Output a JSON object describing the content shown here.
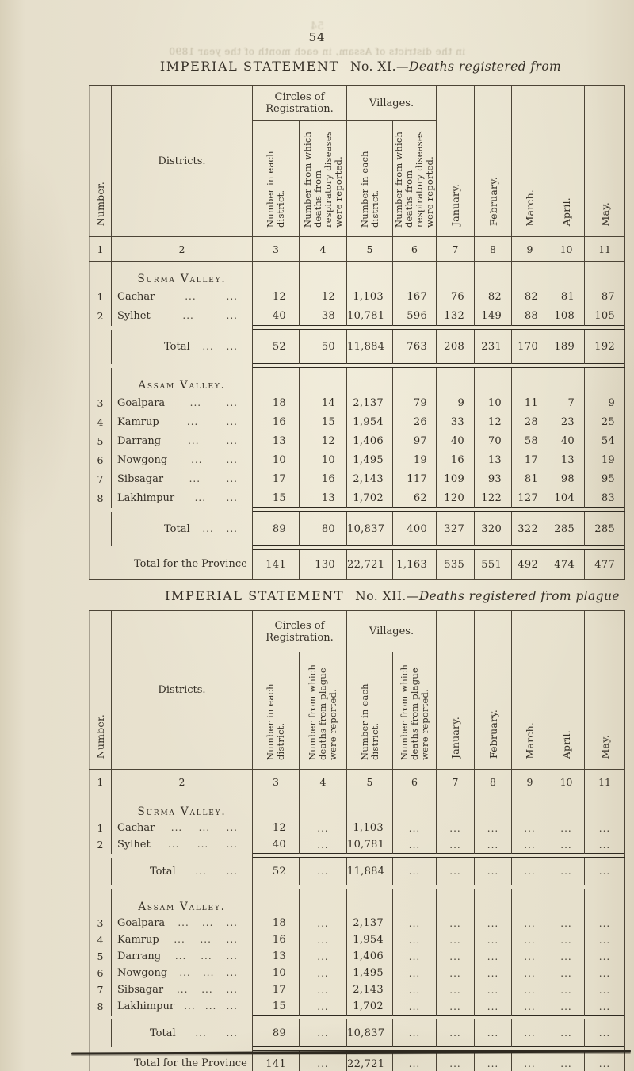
{
  "page": {
    "number": "54",
    "ghost_number": "54",
    "bleedthrough_text": "in the districts of Assam, in each month of the year 1890"
  },
  "tables": [
    {
      "title": {
        "main": "IMPERIAL STATEMENT",
        "no": "No. XI.—",
        "italic": "Deaths registered from"
      },
      "header": {
        "number": "Number.",
        "districts": "Districts.",
        "circles": "Circles of Registration.",
        "villages": "Villages.",
        "sub_count": "Number in each district.",
        "sub_cause": "Number from which deaths from respiratory diseases were reported."
      },
      "months": [
        "January.",
        "February.",
        "March.",
        "April.",
        "May."
      ],
      "col_numbers": [
        "1",
        "2",
        "3",
        "4",
        "5",
        "6",
        "7",
        "8",
        "9",
        "10",
        "11"
      ],
      "leader": "...",
      "leader_groups": 2,
      "body": [
        {
          "t": "section",
          "label": "Surma Valley."
        },
        {
          "t": "row",
          "n": "1",
          "name": "Cachar",
          "v": [
            "12",
            "12",
            "1,103",
            "167",
            "76",
            "82",
            "82",
            "81",
            "87"
          ]
        },
        {
          "t": "row",
          "n": "2",
          "name": "Sylhet",
          "v": [
            "40",
            "38",
            "10,781",
            "596",
            "132",
            "149",
            "88",
            "108",
            "105"
          ]
        },
        {
          "t": "rule"
        },
        {
          "t": "total",
          "label": "Total",
          "v": [
            "52",
            "50",
            "11,884",
            "763",
            "208",
            "231",
            "170",
            "189",
            "192"
          ]
        },
        {
          "t": "rule"
        },
        {
          "t": "section",
          "label": "Assam Valley."
        },
        {
          "t": "row",
          "n": "3",
          "name": "Goalpara",
          "v": [
            "18",
            "14",
            "2,137",
            "79",
            "9",
            "10",
            "11",
            "7",
            "9"
          ]
        },
        {
          "t": "row",
          "n": "4",
          "name": "Kamrup",
          "v": [
            "16",
            "15",
            "1,954",
            "26",
            "33",
            "12",
            "28",
            "23",
            "25"
          ]
        },
        {
          "t": "row",
          "n": "5",
          "name": "Darrang",
          "v": [
            "13",
            "12",
            "1,406",
            "97",
            "40",
            "70",
            "58",
            "40",
            "54"
          ]
        },
        {
          "t": "row",
          "n": "6",
          "name": "Nowgong",
          "v": [
            "10",
            "10",
            "1,495",
            "19",
            "16",
            "13",
            "17",
            "13",
            "19"
          ]
        },
        {
          "t": "row",
          "n": "7",
          "name": "Sibsagar",
          "v": [
            "17",
            "16",
            "2,143",
            "117",
            "109",
            "93",
            "81",
            "98",
            "95"
          ]
        },
        {
          "t": "row",
          "n": "8",
          "name": "Lakhimpur",
          "v": [
            "15",
            "13",
            "1,702",
            "62",
            "120",
            "122",
            "127",
            "104",
            "83"
          ]
        },
        {
          "t": "rule"
        },
        {
          "t": "total",
          "label": "Total",
          "v": [
            "89",
            "80",
            "10,837",
            "400",
            "327",
            "320",
            "322",
            "285",
            "285"
          ]
        },
        {
          "t": "rule"
        },
        {
          "t": "province",
          "label": "Total for the Province",
          "v": [
            "141",
            "130",
            "22,721",
            "1,163",
            "535",
            "551",
            "492",
            "474",
            "477"
          ]
        }
      ]
    },
    {
      "title": {
        "main": "IMPERIAL STATEMENT",
        "no": "No. XII.—",
        "italic": "Deaths registered from plague"
      },
      "header": {
        "number": "Number.",
        "districts": "Districts.",
        "circles": "Circles of Registration.",
        "villages": "Villages.",
        "sub_count": "Number in each district.",
        "sub_cause": "Number from which deaths from plague were reported."
      },
      "months": [
        "January.",
        "February.",
        "March.",
        "April.",
        "May."
      ],
      "col_numbers": [
        "1",
        "2",
        "3",
        "4",
        "5",
        "6",
        "7",
        "8",
        "9",
        "10",
        "11"
      ],
      "leader": "...",
      "leader_groups": 3,
      "body": [
        {
          "t": "section",
          "label": "Surma Valley."
        },
        {
          "t": "row",
          "n": "1",
          "name": "Cachar",
          "v": [
            "12",
            "...",
            "1,103",
            "...",
            "...",
            "...",
            "...",
            "...",
            "..."
          ]
        },
        {
          "t": "row",
          "n": "2",
          "name": "Sylhet",
          "v": [
            "40",
            "...",
            "10,781",
            "...",
            "...",
            "...",
            "...",
            "...",
            "..."
          ]
        },
        {
          "t": "rule"
        },
        {
          "t": "total",
          "label": "Total",
          "v": [
            "52",
            "...",
            "11,884",
            "...",
            "...",
            "...",
            "...",
            "...",
            "..."
          ]
        },
        {
          "t": "rule"
        },
        {
          "t": "section",
          "label": "Assam Valley."
        },
        {
          "t": "row",
          "n": "3",
          "name": "Goalpara",
          "v": [
            "18",
            "...",
            "2,137",
            "...",
            "...",
            "...",
            "...",
            "...",
            "..."
          ]
        },
        {
          "t": "row",
          "n": "4",
          "name": "Kamrup",
          "v": [
            "16",
            "...",
            "1,954",
            "...",
            "...",
            "...",
            "...",
            "...",
            "..."
          ]
        },
        {
          "t": "row",
          "n": "5",
          "name": "Darrang",
          "v": [
            "13",
            "...",
            "1,406",
            "...",
            "...",
            "...",
            "...",
            "...",
            "..."
          ]
        },
        {
          "t": "row",
          "n": "6",
          "name": "Nowgong",
          "v": [
            "10",
            "...",
            "1,495",
            "...",
            "...",
            "...",
            "...",
            "...",
            "..."
          ]
        },
        {
          "t": "row",
          "n": "7",
          "name": "Sibsagar",
          "v": [
            "17",
            "...",
            "2,143",
            "...",
            "...",
            "...",
            "...",
            "...",
            "..."
          ]
        },
        {
          "t": "row",
          "n": "8",
          "name": "Lakhimpur",
          "v": [
            "15",
            "...",
            "1,702",
            "...",
            "...",
            "...",
            "...",
            "...",
            "..."
          ]
        },
        {
          "t": "rule"
        },
        {
          "t": "total",
          "label": "Total",
          "v": [
            "89",
            "...",
            "10,837",
            "...",
            "...",
            "...",
            "...",
            "...",
            "..."
          ]
        },
        {
          "t": "rule"
        },
        {
          "t": "province",
          "label": "Total for the Province",
          "v": [
            "141",
            "...",
            "22,721",
            "...",
            "...",
            "...",
            "...",
            "...",
            "..."
          ]
        }
      ]
    }
  ]
}
